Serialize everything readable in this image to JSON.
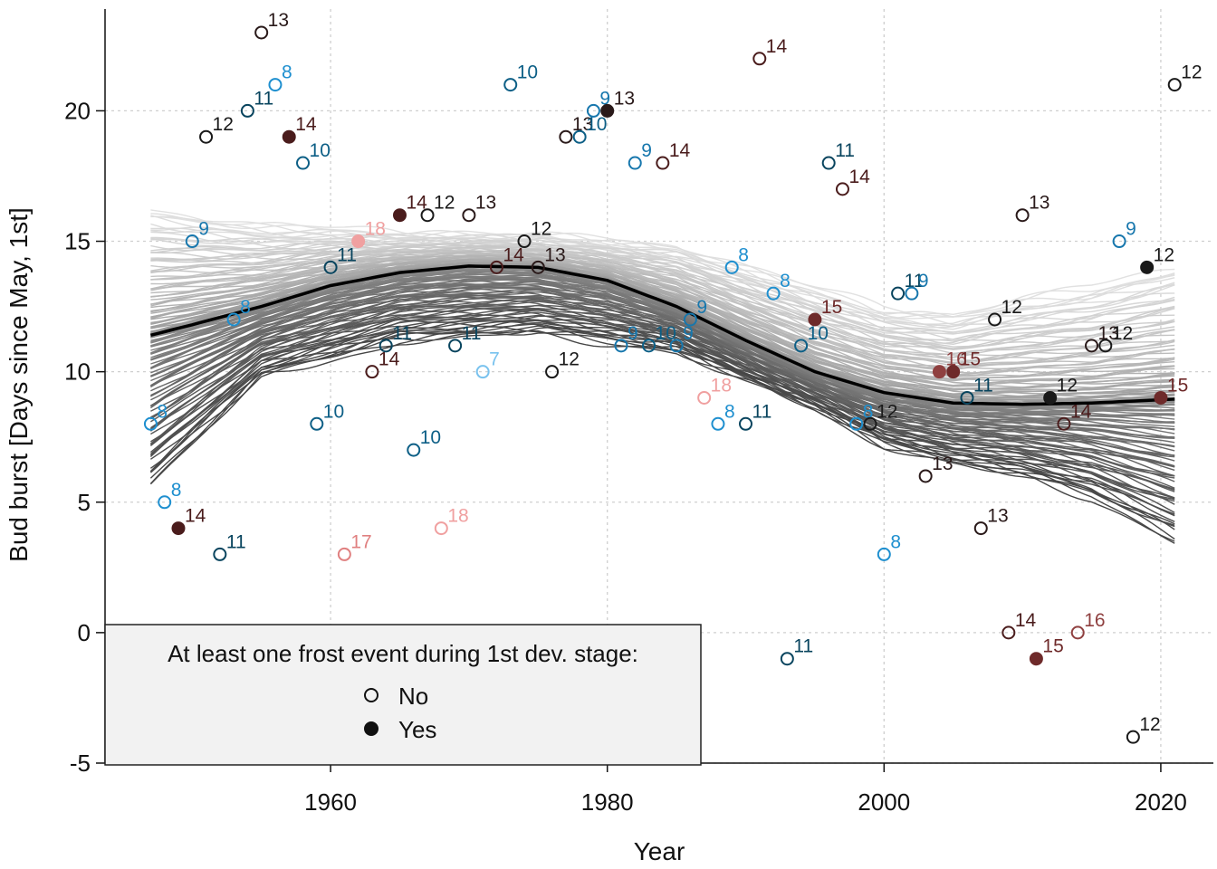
{
  "chart_data": {
    "type": "scatter",
    "xlabel": "Year",
    "ylabel": "Bud burst [Days since May, 1st]",
    "xlim": [
      1943.7,
      2023.8
    ],
    "ylim": [
      -5.0,
      23.9
    ],
    "xticks": [
      1960,
      1980,
      2000,
      2020
    ],
    "yticks": [
      -5,
      0,
      5,
      10,
      15,
      20
    ],
    "x_tick_labels": [
      "1960",
      "1980",
      "2000",
      "2020"
    ],
    "y_tick_labels": [
      "-5",
      "0",
      "5",
      "10",
      "15",
      "20"
    ],
    "grid": true,
    "legend": {
      "placement": "bottom-left",
      "title": "At least one frost event during 1st dev. stage:",
      "entries": [
        {
          "label": "No",
          "marker": "open-circle"
        },
        {
          "label": "Yes",
          "marker": "filled-circle"
        }
      ]
    },
    "label_colors": {
      "7": "#79c2ee",
      "8": "#1e8fcf",
      "9": "#1777ad",
      "10": "#0d5f86",
      "11": "#08445e",
      "12": "#1a1a1a",
      "13": "#2a1a1a",
      "14": "#4a1c1c",
      "15": "#6e2a2a",
      "16": "#8f4040",
      "17": "#e08080",
      "18": "#f0a0a0"
    },
    "fit_curve": {
      "x": [
        1947,
        1950,
        1955,
        1960,
        1965,
        1970,
        1975,
        1980,
        1985,
        1990,
        1995,
        2000,
        2005,
        2010,
        2015,
        2021
      ],
      "y": [
        11.4,
        11.8,
        12.5,
        13.3,
        13.8,
        14.05,
        14.0,
        13.5,
        12.5,
        11.2,
        10.0,
        9.2,
        8.8,
        8.75,
        8.8,
        8.95
      ]
    },
    "band": {
      "x": [
        1947,
        1955,
        1965,
        1975,
        1985,
        1995,
        2000,
        2005,
        2010,
        2015,
        2021
      ],
      "upper": [
        16.2,
        15.6,
        15.3,
        15.2,
        14.8,
        13.2,
        12.4,
        12.2,
        12.8,
        13.2,
        14.0
      ],
      "lower": [
        5.7,
        9.8,
        11.2,
        11.5,
        10.8,
        8.6,
        7.2,
        6.5,
        6.0,
        5.2,
        3.5
      ]
    },
    "points": [
      {
        "x": 1947,
        "y": 8,
        "label": "8",
        "frost": false
      },
      {
        "x": 1948,
        "y": 5,
        "label": "8",
        "frost": false
      },
      {
        "x": 1949,
        "y": 4,
        "label": "14",
        "frost": true
      },
      {
        "x": 1950,
        "y": 15,
        "label": "9",
        "frost": false
      },
      {
        "x": 1951,
        "y": 19,
        "label": "12",
        "frost": false
      },
      {
        "x": 1952,
        "y": 3,
        "label": "11",
        "frost": false
      },
      {
        "x": 1953,
        "y": 12,
        "label": "8",
        "frost": false
      },
      {
        "x": 1954,
        "y": 20,
        "label": "11",
        "frost": false
      },
      {
        "x": 1955,
        "y": 23,
        "label": "13",
        "frost": false
      },
      {
        "x": 1956,
        "y": 21,
        "label": "8",
        "frost": false
      },
      {
        "x": 1957,
        "y": 19,
        "label": "14",
        "frost": true
      },
      {
        "x": 1958,
        "y": 18,
        "label": "10",
        "frost": false
      },
      {
        "x": 1959,
        "y": 8,
        "label": "10",
        "frost": false
      },
      {
        "x": 1960,
        "y": 14,
        "label": "11",
        "frost": false
      },
      {
        "x": 1961,
        "y": 3,
        "label": "17",
        "frost": false
      },
      {
        "x": 1962,
        "y": 15,
        "label": "18",
        "frost": true
      },
      {
        "x": 1963,
        "y": 10,
        "label": "14",
        "frost": false
      },
      {
        "x": 1964,
        "y": 11,
        "label": "11",
        "frost": false
      },
      {
        "x": 1965,
        "y": 16,
        "label": "14",
        "frost": true
      },
      {
        "x": 1966,
        "y": 7,
        "label": "10",
        "frost": false
      },
      {
        "x": 1967,
        "y": 16,
        "label": "12",
        "frost": false
      },
      {
        "x": 1968,
        "y": 4,
        "label": "18",
        "frost": false
      },
      {
        "x": 1969,
        "y": 11,
        "label": "11",
        "frost": false
      },
      {
        "x": 1970,
        "y": 16,
        "label": "13",
        "frost": false
      },
      {
        "x": 1971,
        "y": 10,
        "label": "7",
        "frost": false
      },
      {
        "x": 1972,
        "y": 14,
        "label": "14",
        "frost": false
      },
      {
        "x": 1973,
        "y": 21,
        "label": "10",
        "frost": false
      },
      {
        "x": 1974,
        "y": 15,
        "label": "12",
        "frost": false
      },
      {
        "x": 1975,
        "y": 14,
        "label": "13",
        "frost": false
      },
      {
        "x": 1976,
        "y": 10,
        "label": "12",
        "frost": false
      },
      {
        "x": 1977,
        "y": 19,
        "label": "13",
        "frost": false
      },
      {
        "x": 1978,
        "y": 19,
        "label": "10",
        "frost": false
      },
      {
        "x": 1979,
        "y": 20,
        "label": "9",
        "frost": false
      },
      {
        "x": 1980,
        "y": 20,
        "label": "13",
        "frost": true
      },
      {
        "x": 1981,
        "y": 11,
        "label": "9",
        "frost": false
      },
      {
        "x": 1982,
        "y": 18,
        "label": "9",
        "frost": false
      },
      {
        "x": 1983,
        "y": 11,
        "label": "10",
        "frost": false
      },
      {
        "x": 1984,
        "y": 18,
        "label": "14",
        "frost": false
      },
      {
        "x": 1985,
        "y": 11,
        "label": "9",
        "frost": false
      },
      {
        "x": 1986,
        "y": 12,
        "label": "9",
        "frost": false
      },
      {
        "x": 1987,
        "y": 9,
        "label": "18",
        "frost": false
      },
      {
        "x": 1988,
        "y": 8,
        "label": "8",
        "frost": false
      },
      {
        "x": 1989,
        "y": 14,
        "label": "8",
        "frost": false
      },
      {
        "x": 1990,
        "y": 8,
        "label": "11",
        "frost": false
      },
      {
        "x": 1991,
        "y": 22,
        "label": "14",
        "frost": false
      },
      {
        "x": 1992,
        "y": 13,
        "label": "8",
        "frost": false
      },
      {
        "x": 1993,
        "y": -1,
        "label": "11",
        "frost": false
      },
      {
        "x": 1994,
        "y": 11,
        "label": "10",
        "frost": false
      },
      {
        "x": 1995,
        "y": 12,
        "label": "15",
        "frost": true
      },
      {
        "x": 1996,
        "y": 18,
        "label": "11",
        "frost": false
      },
      {
        "x": 1997,
        "y": 17,
        "label": "14",
        "frost": false
      },
      {
        "x": 1998,
        "y": 8,
        "label": "8",
        "frost": false
      },
      {
        "x": 1999,
        "y": 8,
        "label": "12",
        "frost": false
      },
      {
        "x": 2000,
        "y": 3,
        "label": "8",
        "frost": false
      },
      {
        "x": 2001,
        "y": 13,
        "label": "11",
        "frost": false
      },
      {
        "x": 2002,
        "y": 13,
        "label": "9",
        "frost": false
      },
      {
        "x": 2003,
        "y": 6,
        "label": "13",
        "frost": false
      },
      {
        "x": 2004,
        "y": 10,
        "label": "16",
        "frost": true
      },
      {
        "x": 2005,
        "y": 10,
        "label": "15",
        "frost": true
      },
      {
        "x": 2006,
        "y": 9,
        "label": "11",
        "frost": false
      },
      {
        "x": 2007,
        "y": 4,
        "label": "13",
        "frost": false
      },
      {
        "x": 2008,
        "y": 12,
        "label": "12",
        "frost": false
      },
      {
        "x": 2009,
        "y": 0,
        "label": "14",
        "frost": false
      },
      {
        "x": 2010,
        "y": 16,
        "label": "13",
        "frost": false
      },
      {
        "x": 2011,
        "y": -1,
        "label": "15",
        "frost": true
      },
      {
        "x": 2012,
        "y": 9,
        "label": "12",
        "frost": true
      },
      {
        "x": 2013,
        "y": 8,
        "label": "14",
        "frost": false
      },
      {
        "x": 2014,
        "y": 0,
        "label": "16",
        "frost": false
      },
      {
        "x": 2015,
        "y": 11,
        "label": "13",
        "frost": false
      },
      {
        "x": 2016,
        "y": 11,
        "label": "12",
        "frost": false
      },
      {
        "x": 2017,
        "y": 15,
        "label": "9",
        "frost": false
      },
      {
        "x": 2018,
        "y": -4,
        "label": "12",
        "frost": false
      },
      {
        "x": 2019,
        "y": 14,
        "label": "12",
        "frost": true
      },
      {
        "x": 2020,
        "y": 9,
        "label": "15",
        "frost": true
      },
      {
        "x": 2021,
        "y": 21,
        "label": "12",
        "frost": false
      }
    ]
  }
}
